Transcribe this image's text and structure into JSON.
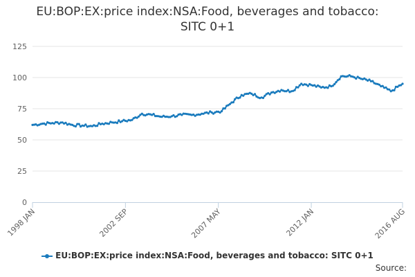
{
  "chart_data": {
    "type": "line",
    "title_lines": [
      "EU:BOP:EX:price index:NSA:Food, beverages and tobacco:",
      "SITC 0+1"
    ],
    "x_tick_labels": [
      "1998 JAN",
      "2002 SEP",
      "2007 MAY",
      "2012 JAN",
      "2016 AUG"
    ],
    "y_ticks": [
      0,
      25,
      50,
      75,
      100,
      125
    ],
    "ylim": [
      0,
      125
    ],
    "grid": true,
    "legend_position": "bottom",
    "series": [
      {
        "name": "EU:BOP:EX:price index:NSA:Food, beverages and tobacco: SITC 0+1",
        "color": "#1a7bbd",
        "x": [
          "1998 JAN",
          "1998 JUL",
          "1999 JAN",
          "1999 JUL",
          "2000 JAN",
          "2000 JUL",
          "2001 JAN",
          "2001 JUL",
          "2002 JAN",
          "2002 JUL",
          "2003 JAN",
          "2003 JUL",
          "2004 JAN",
          "2004 JUL",
          "2005 JAN",
          "2005 JUL",
          "2006 JAN",
          "2006 JUL",
          "2007 JAN",
          "2007 JUL",
          "2008 JAN",
          "2008 JUL",
          "2009 JAN",
          "2009 JUL",
          "2010 JAN",
          "2010 JUL",
          "2011 JAN",
          "2011 JUL",
          "2012 JAN",
          "2012 JUL",
          "2013 JAN",
          "2013 JUL",
          "2014 JAN",
          "2014 JUL",
          "2015 JAN",
          "2015 JUL",
          "2016 JAN",
          "2016 AUG"
        ],
        "y": [
          62,
          63,
          63.5,
          64,
          62,
          61.5,
          61,
          63,
          64,
          65,
          66,
          71,
          70,
          68.5,
          69,
          70,
          70,
          71,
          72,
          73,
          80,
          86,
          87,
          84,
          88,
          90,
          89,
          95,
          94,
          92,
          93,
          101,
          101,
          99,
          97,
          93,
          89,
          95
        ]
      }
    ]
  },
  "legend_label": "EU:BOP:EX:price index:NSA:Food, beverages and tobacco: SITC 0+1",
  "source_label": "Source:"
}
